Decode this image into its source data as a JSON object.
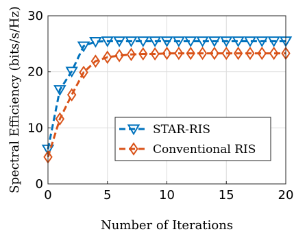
{
  "chart_data": {
    "type": "line",
    "xlabel": "Number of Iterations",
    "ylabel": "Spectral Efficiency (bits/s/Hz)",
    "xlim": [
      0,
      20
    ],
    "ylim": [
      0,
      30
    ],
    "xticks": [
      "0",
      "5",
      "10",
      "15",
      "20"
    ],
    "yticks": [
      "0",
      "10",
      "20",
      "30"
    ],
    "grid": true,
    "legend_position": "center-right",
    "x": [
      0,
      1,
      2,
      3,
      4,
      5,
      6,
      7,
      8,
      9,
      10,
      11,
      12,
      13,
      14,
      15,
      16,
      17,
      18,
      19,
      20
    ],
    "series": [
      {
        "name": "STAR-RIS",
        "color": "#0072BD",
        "marker": "triangle-down",
        "linestyle": "dashed",
        "values": [
          6.2,
          16.8,
          20.1,
          24.6,
          25.4,
          25.5,
          25.5,
          25.5,
          25.5,
          25.5,
          25.5,
          25.5,
          25.5,
          25.5,
          25.5,
          25.5,
          25.5,
          25.5,
          25.5,
          25.5,
          25.5
        ]
      },
      {
        "name": "Conventional RIS",
        "color": "#D95319",
        "marker": "diamond",
        "linestyle": "dashed",
        "values": [
          4.8,
          11.6,
          15.9,
          19.9,
          21.9,
          22.6,
          22.9,
          23.1,
          23.2,
          23.2,
          23.3,
          23.3,
          23.3,
          23.3,
          23.3,
          23.3,
          23.3,
          23.3,
          23.3,
          23.3,
          23.3
        ]
      }
    ]
  }
}
